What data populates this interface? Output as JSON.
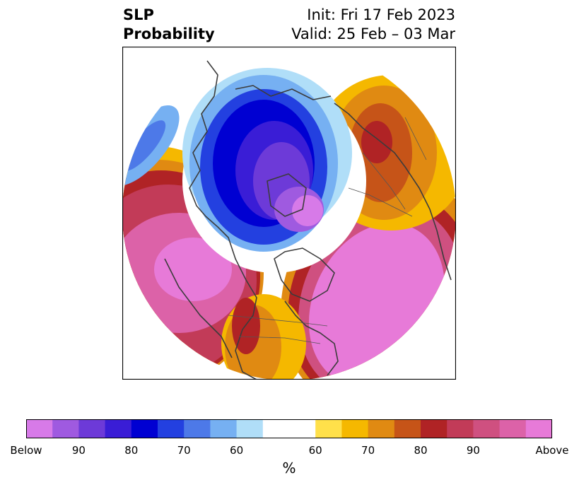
{
  "title": {
    "left_line1": "SLP",
    "left_line2": "Probability",
    "right_line1": "Init: Fri 17 Feb 2023",
    "right_line2": "Valid: 25 Feb – 03 Mar"
  },
  "colorbar": {
    "unit": "%",
    "colors": [
      "#d77ae8",
      "#9f5ae0",
      "#6d3ad8",
      "#3a1dd6",
      "#0000d2",
      "#2340e0",
      "#4d79e8",
      "#76b0f2",
      "#b0def8",
      "#ffffff",
      "#ffffff",
      "#ffe04a",
      "#f5b800",
      "#e08a12",
      "#c65418",
      "#b02325",
      "#c23b58",
      "#cf5080",
      "#dc62a8",
      "#e77ad8"
    ],
    "ticks": [
      "Below",
      "90",
      "80",
      "70",
      "60",
      "60",
      "70",
      "80",
      "90",
      "Above"
    ],
    "tick_boundaries": [
      0,
      2,
      4,
      6,
      8,
      11,
      13,
      15,
      17,
      20
    ]
  },
  "map": {
    "projection": "north-polar-stereographic",
    "ocean_color": "#ffffff",
    "coastline_color": "#3c3c3c"
  }
}
